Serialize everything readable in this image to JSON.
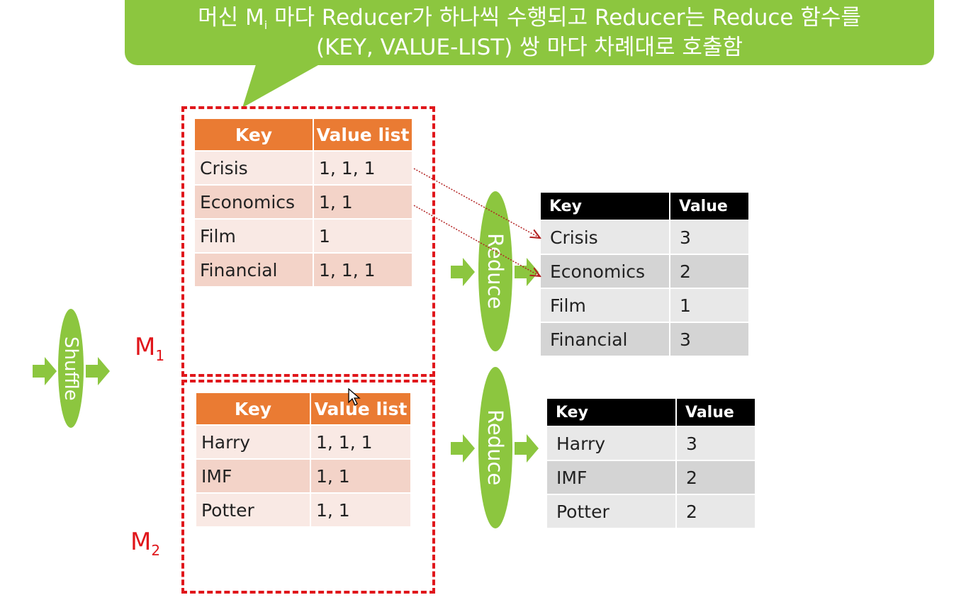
{
  "callout": {
    "line1_pre": "머신 M",
    "line1_sub": "i",
    "line1_post": " 마다 Reducer가 하나씩 수행되고 Reducer는 Reduce 함수를",
    "line2": "(KEY, VALUE-LIST) 쌍 마다 차례대로 호출함"
  },
  "shuffle_label": "Shuffle",
  "machines": [
    {
      "label": "M",
      "label_sub": "1",
      "header": {
        "key": "Key",
        "value": "Value list"
      },
      "rows": [
        {
          "key": "Crisis",
          "value": "1, 1, 1"
        },
        {
          "key": "Economics",
          "value": "1, 1"
        },
        {
          "key": "Film",
          "value": "1"
        },
        {
          "key": "Financial",
          "value": "1, 1, 1"
        }
      ],
      "reduce_label": "Reduce",
      "result_header": {
        "key": "Key",
        "value": "Value"
      },
      "results": [
        {
          "key": "Crisis",
          "value": "3"
        },
        {
          "key": "Economics",
          "value": "2"
        },
        {
          "key": "Film",
          "value": "1"
        },
        {
          "key": "Financial",
          "value": "3"
        }
      ]
    },
    {
      "label": "M",
      "label_sub": "2",
      "header": {
        "key": "Key",
        "value": "Value list"
      },
      "rows": [
        {
          "key": "Harry",
          "value": "1, 1, 1"
        },
        {
          "key": "IMF",
          "value": "1, 1"
        },
        {
          "key": "Potter",
          "value": "1, 1"
        }
      ],
      "reduce_label": "Reduce",
      "result_header": {
        "key": "Key",
        "value": "Value"
      },
      "results": [
        {
          "key": "Harry",
          "value": "3"
        },
        {
          "key": "IMF",
          "value": "2"
        },
        {
          "key": "Potter",
          "value": "2"
        }
      ]
    }
  ],
  "colors": {
    "green": "#8cc63f",
    "orange": "#ea7b33",
    "red_dash": "#e0161b",
    "black_header": "#000000"
  }
}
